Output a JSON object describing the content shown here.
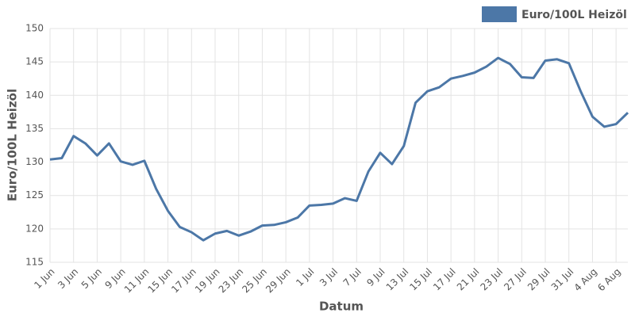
{
  "chart_data": {
    "type": "line",
    "x_label": "Datum",
    "y_label": "Euro/100L Heizöl",
    "categories": [
      "1 Jun",
      null,
      "3 Jun",
      null,
      "5 Jun",
      null,
      "9 Jun",
      null,
      "11 Jun",
      null,
      "15 Jun",
      null,
      "17 Jun",
      null,
      "19 Jun",
      null,
      "23 Jun",
      null,
      "25 Jun",
      null,
      "29 Jun",
      null,
      "1 Jul",
      null,
      "3 Jul",
      null,
      "7 Jul",
      null,
      "9 Jul",
      null,
      "13 Jul",
      null,
      "15 Jul",
      null,
      "17 Jul",
      null,
      "21 Jul",
      null,
      "23 Jul",
      null,
      "27 Jul",
      null,
      "29 Jul",
      null,
      "31 Jul",
      null,
      "4 Aug",
      null,
      "6 Aug",
      null
    ],
    "series": [
      {
        "name": "Euro/100L Heizöl",
        "color": "#4c77a7",
        "values": [
          130.4,
          130.6,
          133.9,
          132.8,
          131.0,
          132.8,
          130.1,
          129.6,
          130.2,
          126.0,
          122.7,
          120.3,
          119.5,
          118.3,
          119.3,
          119.7,
          119.0,
          119.6,
          120.5,
          120.6,
          121.0,
          121.7,
          123.5,
          123.6,
          123.8,
          124.6,
          124.2,
          128.6,
          131.4,
          129.7,
          132.4,
          138.9,
          140.6,
          141.2,
          142.5,
          142.9,
          143.4,
          144.3,
          145.6,
          144.7,
          142.7,
          142.6,
          145.2,
          145.4,
          144.8,
          140.6,
          136.8,
          135.3,
          135.7,
          137.4
        ]
      }
    ],
    "ylim": [
      115,
      150
    ],
    "yticks": [
      115,
      120,
      125,
      130,
      135,
      140,
      145,
      150
    ],
    "grid": true,
    "legend": "top-right"
  }
}
